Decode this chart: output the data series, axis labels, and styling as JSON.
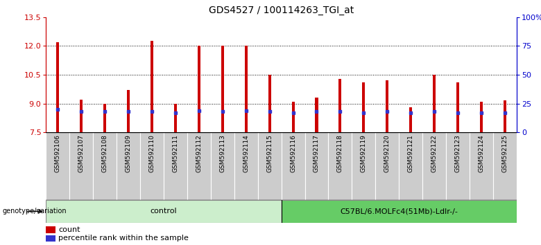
{
  "title": "GDS4527 / 100114263_TGI_at",
  "samples": [
    "GSM592106",
    "GSM592107",
    "GSM592108",
    "GSM592109",
    "GSM592110",
    "GSM592111",
    "GSM592112",
    "GSM592113",
    "GSM592114",
    "GSM592115",
    "GSM592116",
    "GSM592117",
    "GSM592118",
    "GSM592119",
    "GSM592120",
    "GSM592121",
    "GSM592122",
    "GSM592123",
    "GSM592124",
    "GSM592125"
  ],
  "count_values": [
    12.2,
    9.2,
    9.0,
    9.7,
    12.25,
    9.0,
    12.0,
    12.0,
    12.0,
    10.5,
    9.1,
    9.3,
    10.3,
    10.1,
    10.2,
    8.8,
    10.5,
    10.1,
    9.1,
    9.15
  ],
  "percentile_rank": [
    20,
    18,
    18,
    18,
    18,
    17,
    19,
    18,
    19,
    18,
    17,
    18,
    18,
    17,
    18,
    17,
    18,
    17,
    17,
    17
  ],
  "ymin": 7.5,
  "ymax": 13.5,
  "yticks_left": [
    7.5,
    9.0,
    10.5,
    12.0,
    13.5
  ],
  "yticks_right": [
    0,
    25,
    50,
    75,
    100
  ],
  "bar_color": "#cc0000",
  "percentile_color": "#3333cc",
  "tick_color_left": "#cc0000",
  "tick_color_right": "#0000cc",
  "n_control": 10,
  "control_label": "control",
  "treatment_label": "C57BL/6.MOLFc4(51Mb)-Ldlr-/-",
  "genotype_label": "genotype/variation",
  "control_bg": "#cceecc",
  "treatment_bg": "#66cc66",
  "legend_count": "count",
  "legend_percentile": "percentile rank within the sample",
  "bar_width": 0.12,
  "grid_lines": [
    9.0,
    10.5,
    12.0
  ],
  "tick_bg_color": "#cccccc",
  "tick_sep_color": "#ffffff"
}
